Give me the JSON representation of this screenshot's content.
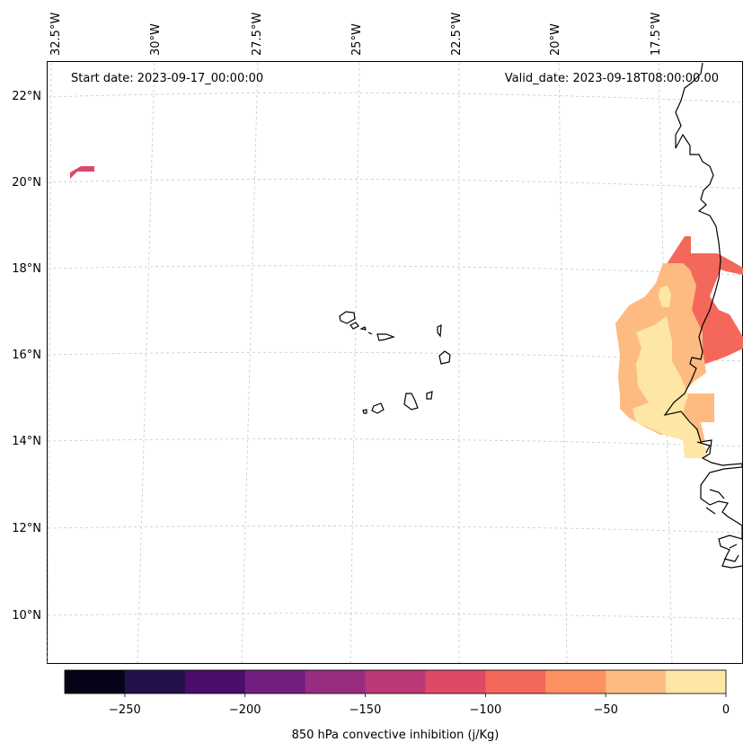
{
  "map": {
    "start_date": "Start date: 2023-09-17_00:00:00",
    "valid_date": "Valid_date: 2023-09-18T08:00:00.00",
    "lon_labels": [
      "32.5°W",
      "30°W",
      "27.5°W",
      "25°W",
      "22.5°W",
      "20°W",
      "17.5°W"
    ],
    "lat_labels": [
      "22°N",
      "20°N",
      "18°N",
      "16°N",
      "14°N",
      "12°N",
      "10°N"
    ],
    "colorbar": {
      "label": "850 hPa convective inhibition (j/Kg)",
      "tick_labels": [
        "−250",
        "−200",
        "−150",
        "−100",
        "−50",
        "0"
      ],
      "levels": [
        -275,
        -250,
        -225,
        -200,
        -175,
        -150,
        -125,
        -100,
        -75,
        -50,
        -25,
        0
      ],
      "colors": [
        "#050418",
        "#221149",
        "#4b0c6b",
        "#721f81",
        "#972c80",
        "#bc3978",
        "#de4968",
        "#f4685c",
        "#fe9161",
        "#febb81",
        "#fde6a6"
      ]
    }
  }
}
